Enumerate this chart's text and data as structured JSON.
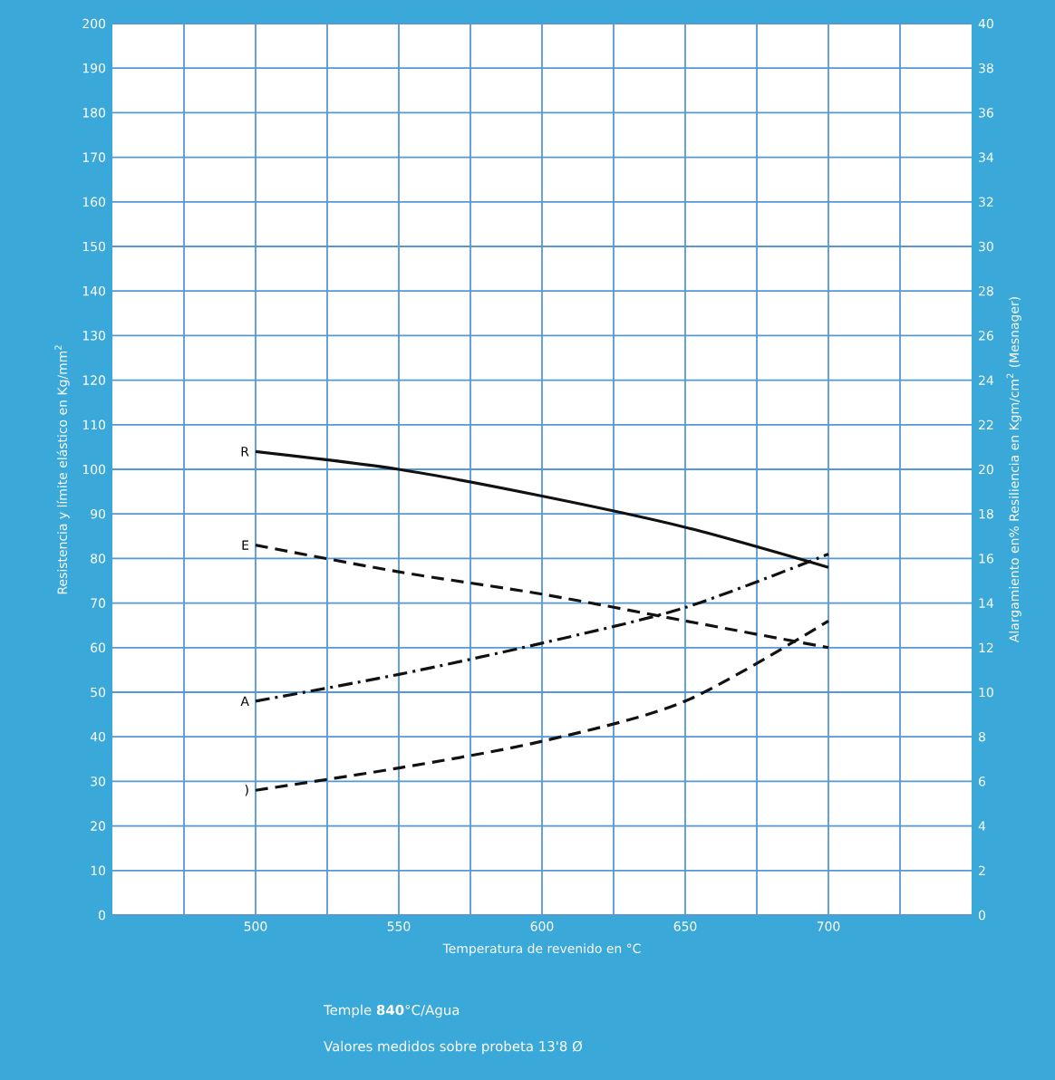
{
  "chart_data": {
    "type": "line",
    "xlabel": "Temperatura de revenido en °C",
    "ylabel": "Resistencia y límite elástico en Kg/mm$^{2}$",
    "y2label": "Alargamiento en%   Resiliencia en Kgm/cm$^{2}$ (Mesnager)",
    "x": [
      500,
      550,
      600,
      650,
      700
    ],
    "series": [
      {
        "name": "R",
        "color": "#111111",
        "line_style": "solid",
        "values": [
          104,
          100,
          94,
          87,
          78
        ]
      },
      {
        "name": "E",
        "color": "#111111",
        "line_style": "dashed",
        "values": [
          83,
          77,
          72,
          66,
          60
        ]
      },
      {
        "name": "A",
        "color": "#111111",
        "line_style": "dashdot",
        "axis": "y2",
        "values": [
          9.6,
          10.8,
          12.2,
          13.8,
          16.2
        ]
      },
      {
        "name": ")",
        "color": "#111111",
        "line_style": "dashed",
        "axis": "y2",
        "values": [
          5.6,
          6.6,
          7.8,
          9.6,
          13.2
        ]
      }
    ],
    "xlim": [
      450,
      750
    ],
    "xticks": [
      {
        "value": 475,
        "label": null
      },
      500,
      {
        "value": 525,
        "label": null
      },
      550,
      {
        "value": 575,
        "label": null
      },
      600,
      {
        "value": 625,
        "label": null
      },
      650,
      {
        "value": 675,
        "label": null
      },
      700,
      {
        "value": 725,
        "label": null
      }
    ],
    "ylim": [
      0,
      200
    ],
    "yticks": [
      0,
      10,
      20,
      30,
      40,
      50,
      60,
      70,
      80,
      90,
      100,
      110,
      120,
      130,
      140,
      150,
      160,
      170,
      180,
      190,
      200
    ],
    "y2lim": [
      0,
      40
    ],
    "y2ticks": [
      0,
      2,
      4,
      6,
      8,
      10,
      12,
      14,
      16,
      18,
      20,
      22,
      24,
      26,
      28,
      30,
      32,
      34,
      36,
      38,
      40
    ],
    "grid": true,
    "marker": "none",
    "annotations": [
      "Temple **840**°C/Agua",
      "Valores medidos sobre probeta 13'8 Ø"
    ]
  }
}
